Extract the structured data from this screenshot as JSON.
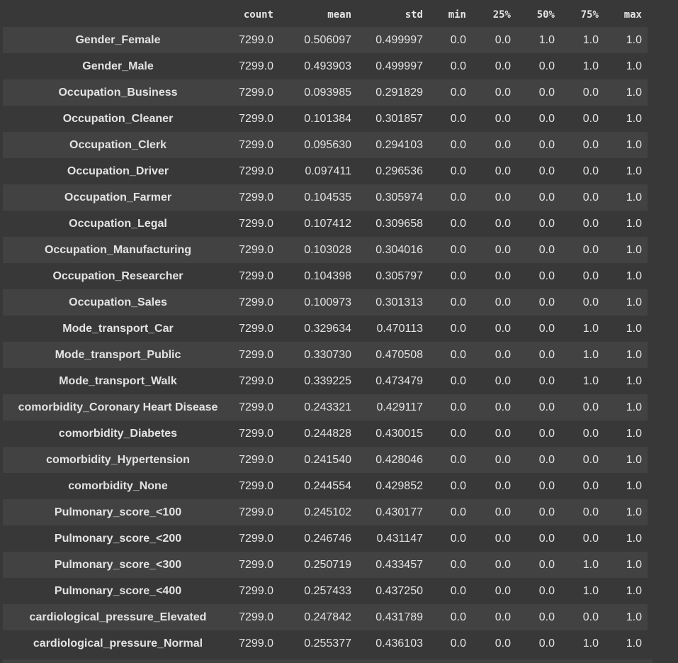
{
  "table": {
    "columns": [
      "count",
      "mean",
      "std",
      "min",
      "25%",
      "50%",
      "75%",
      "max"
    ],
    "rows": [
      {
        "index": "Gender_Female",
        "values": [
          "7299.0",
          "0.506097",
          "0.499997",
          "0.0",
          "0.0",
          "1.0",
          "1.0",
          "1.0"
        ]
      },
      {
        "index": "Gender_Male",
        "values": [
          "7299.0",
          "0.493903",
          "0.499997",
          "0.0",
          "0.0",
          "0.0",
          "1.0",
          "1.0"
        ]
      },
      {
        "index": "Occupation_Business",
        "values": [
          "7299.0",
          "0.093985",
          "0.291829",
          "0.0",
          "0.0",
          "0.0",
          "0.0",
          "1.0"
        ]
      },
      {
        "index": "Occupation_Cleaner",
        "values": [
          "7299.0",
          "0.101384",
          "0.301857",
          "0.0",
          "0.0",
          "0.0",
          "0.0",
          "1.0"
        ]
      },
      {
        "index": "Occupation_Clerk",
        "values": [
          "7299.0",
          "0.095630",
          "0.294103",
          "0.0",
          "0.0",
          "0.0",
          "0.0",
          "1.0"
        ]
      },
      {
        "index": "Occupation_Driver",
        "values": [
          "7299.0",
          "0.097411",
          "0.296536",
          "0.0",
          "0.0",
          "0.0",
          "0.0",
          "1.0"
        ]
      },
      {
        "index": "Occupation_Farmer",
        "values": [
          "7299.0",
          "0.104535",
          "0.305974",
          "0.0",
          "0.0",
          "0.0",
          "0.0",
          "1.0"
        ]
      },
      {
        "index": "Occupation_Legal",
        "values": [
          "7299.0",
          "0.107412",
          "0.309658",
          "0.0",
          "0.0",
          "0.0",
          "0.0",
          "1.0"
        ]
      },
      {
        "index": "Occupation_Manufacturing",
        "values": [
          "7299.0",
          "0.103028",
          "0.304016",
          "0.0",
          "0.0",
          "0.0",
          "0.0",
          "1.0"
        ]
      },
      {
        "index": "Occupation_Researcher",
        "values": [
          "7299.0",
          "0.104398",
          "0.305797",
          "0.0",
          "0.0",
          "0.0",
          "0.0",
          "1.0"
        ]
      },
      {
        "index": "Occupation_Sales",
        "values": [
          "7299.0",
          "0.100973",
          "0.301313",
          "0.0",
          "0.0",
          "0.0",
          "0.0",
          "1.0"
        ]
      },
      {
        "index": "Mode_transport_Car",
        "values": [
          "7299.0",
          "0.329634",
          "0.470113",
          "0.0",
          "0.0",
          "0.0",
          "1.0",
          "1.0"
        ]
      },
      {
        "index": "Mode_transport_Public",
        "values": [
          "7299.0",
          "0.330730",
          "0.470508",
          "0.0",
          "0.0",
          "0.0",
          "1.0",
          "1.0"
        ]
      },
      {
        "index": "Mode_transport_Walk",
        "values": [
          "7299.0",
          "0.339225",
          "0.473479",
          "0.0",
          "0.0",
          "0.0",
          "1.0",
          "1.0"
        ]
      },
      {
        "index": "comorbidity_Coronary Heart Disease",
        "values": [
          "7299.0",
          "0.243321",
          "0.429117",
          "0.0",
          "0.0",
          "0.0",
          "0.0",
          "1.0"
        ]
      },
      {
        "index": "comorbidity_Diabetes",
        "values": [
          "7299.0",
          "0.244828",
          "0.430015",
          "0.0",
          "0.0",
          "0.0",
          "0.0",
          "1.0"
        ]
      },
      {
        "index": "comorbidity_Hypertension",
        "values": [
          "7299.0",
          "0.241540",
          "0.428046",
          "0.0",
          "0.0",
          "0.0",
          "0.0",
          "1.0"
        ]
      },
      {
        "index": "comorbidity_None",
        "values": [
          "7299.0",
          "0.244554",
          "0.429852",
          "0.0",
          "0.0",
          "0.0",
          "0.0",
          "1.0"
        ]
      },
      {
        "index": "Pulmonary_score_<100",
        "values": [
          "7299.0",
          "0.245102",
          "0.430177",
          "0.0",
          "0.0",
          "0.0",
          "0.0",
          "1.0"
        ]
      },
      {
        "index": "Pulmonary_score_<200",
        "values": [
          "7299.0",
          "0.246746",
          "0.431147",
          "0.0",
          "0.0",
          "0.0",
          "0.0",
          "1.0"
        ]
      },
      {
        "index": "Pulmonary_score_<300",
        "values": [
          "7299.0",
          "0.250719",
          "0.433457",
          "0.0",
          "0.0",
          "0.0",
          "1.0",
          "1.0"
        ]
      },
      {
        "index": "Pulmonary_score_<400",
        "values": [
          "7299.0",
          "0.257433",
          "0.437250",
          "0.0",
          "0.0",
          "0.0",
          "1.0",
          "1.0"
        ]
      },
      {
        "index": "cardiological_pressure_Elevated",
        "values": [
          "7299.0",
          "0.247842",
          "0.431789",
          "0.0",
          "0.0",
          "0.0",
          "0.0",
          "1.0"
        ]
      },
      {
        "index": "cardiological_pressure_Normal",
        "values": [
          "7299.0",
          "0.255377",
          "0.436103",
          "0.0",
          "0.0",
          "0.0",
          "1.0",
          "1.0"
        ]
      }
    ]
  },
  "colors": {
    "background": "#383838",
    "row_stripe": "#424242",
    "text": "#e3e3e3"
  }
}
